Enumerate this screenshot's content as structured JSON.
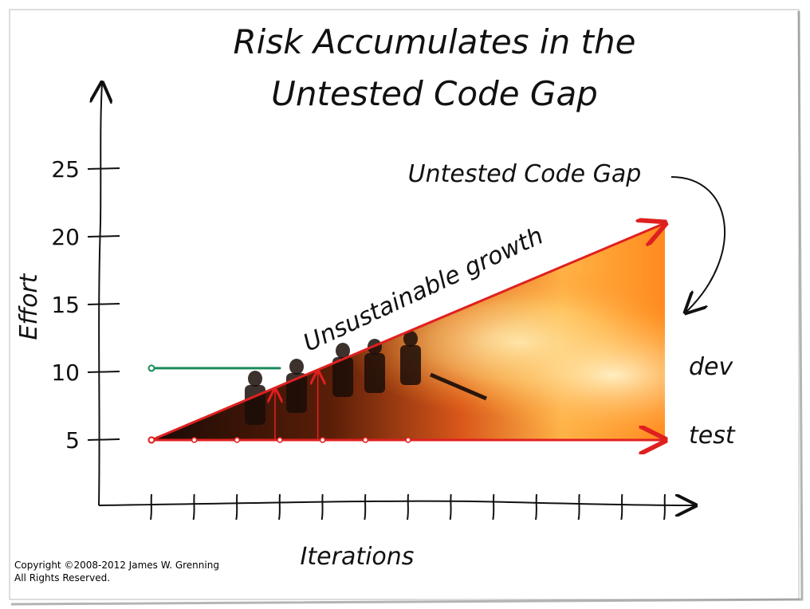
{
  "chart_data": {
    "type": "line",
    "title_line1": "Risk Accumulates in the",
    "title_line2": "Untested Code Gap",
    "ylabel": "Effort",
    "xlabel": "Iterations",
    "ylim": [
      0,
      30
    ],
    "yticks": [
      5,
      10,
      15,
      20,
      25
    ],
    "x_tick_count": 13,
    "series": [
      {
        "name": "dev",
        "x": [
          0,
          3
        ],
        "values": [
          10.3,
          10.3
        ],
        "color": "#1a8a5a"
      },
      {
        "name": "test",
        "x": [
          0,
          12
        ],
        "values": [
          5,
          5
        ],
        "color": "#e02020"
      },
      {
        "name": "",
        "x": [
          0,
          12
        ],
        "values": [
          5,
          21
        ],
        "color": "#e02020"
      }
    ],
    "annotations": {
      "gap": "Untested Code Gap",
      "growth": "Unsustainable growth"
    }
  },
  "copyright": {
    "line1": "Copyright ©2008-2012 James W. Grenning",
    "line2": "All Rights Reserved."
  }
}
